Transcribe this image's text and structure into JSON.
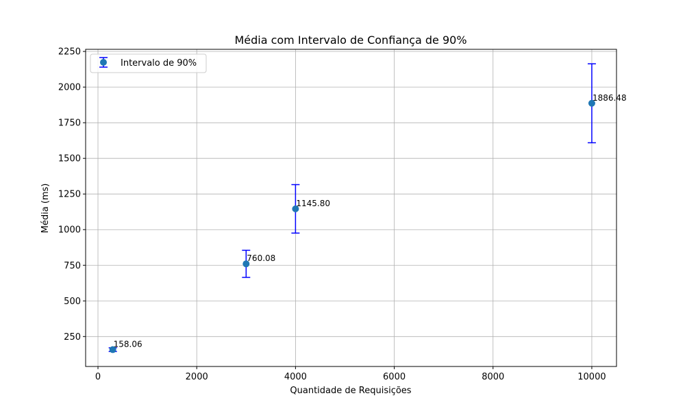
{
  "chart_data": {
    "type": "scatter",
    "title": "Média com Intervalo de Confiança de 90%",
    "xlabel": "Quantidade de Requisições",
    "ylabel": "Média (ms)",
    "xlim": [
      -250,
      10500
    ],
    "ylim": [
      40,
      2265
    ],
    "xticks": [
      0,
      2000,
      4000,
      6000,
      8000,
      10000
    ],
    "yticks": [
      250,
      500,
      750,
      1000,
      1250,
      1500,
      1750,
      2000,
      2250
    ],
    "grid": true,
    "legend": {
      "position": "top-left",
      "entries": [
        "Intervalo de 90%"
      ]
    },
    "series": [
      {
        "name": "Intervalo de 90%",
        "marker_color": "#1f77b4",
        "errorbar_color": "#0000ff",
        "points": [
          {
            "x": 300,
            "y": 158.06,
            "err": 13,
            "label": "158.06"
          },
          {
            "x": 3000,
            "y": 760.08,
            "err": 95,
            "label": "760.08"
          },
          {
            "x": 4000,
            "y": 1145.8,
            "err": 170,
            "label": "1145.80"
          },
          {
            "x": 10000,
            "y": 1886.48,
            "err": 277,
            "label": "1886.48"
          }
        ]
      }
    ]
  }
}
